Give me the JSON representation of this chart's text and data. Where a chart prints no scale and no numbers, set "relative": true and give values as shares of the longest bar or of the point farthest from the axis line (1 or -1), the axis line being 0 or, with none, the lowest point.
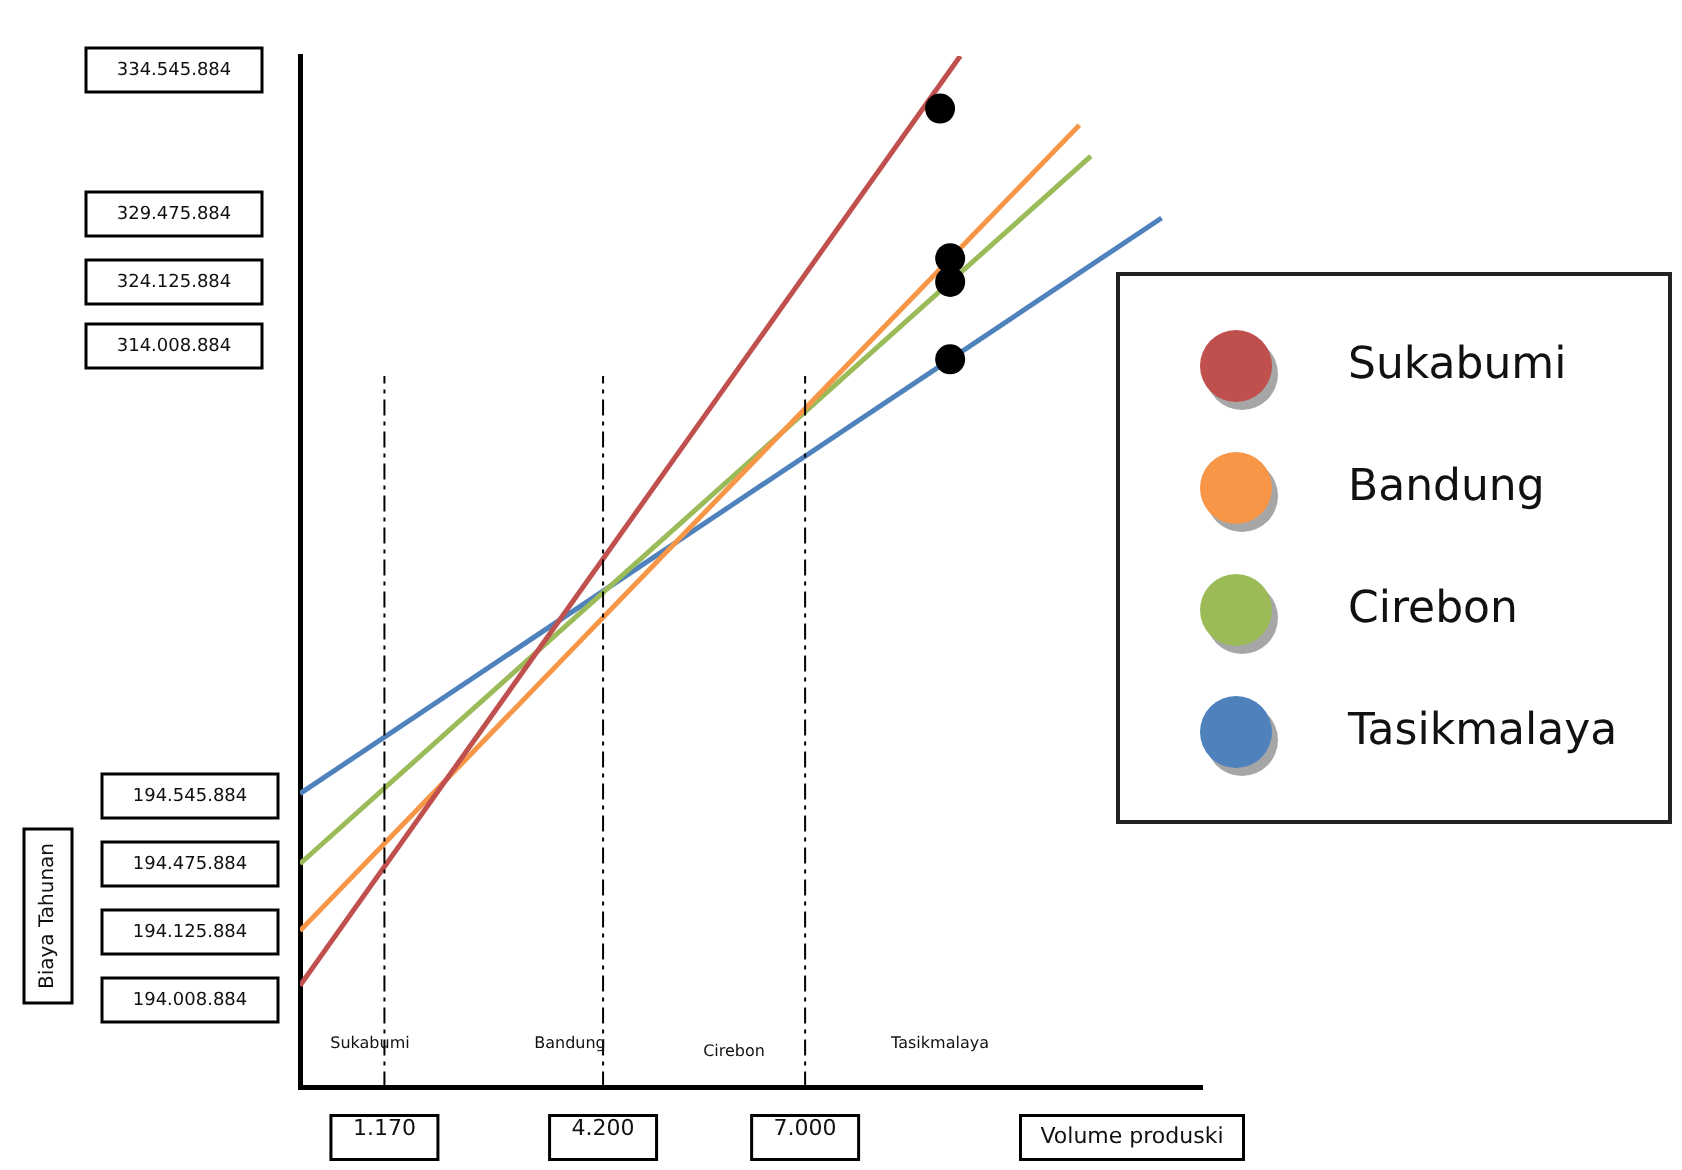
{
  "chart_data": {
    "type": "line",
    "relative": true,
    "xlabel": "Volume produski",
    "xlim": [
      0,
      12500
    ],
    "xticks": [
      {
        "value": 1170,
        "label": "1.170"
      },
      {
        "value": 4200,
        "label": "4.200"
      },
      {
        "value": 7000,
        "label": "7.000"
      }
    ],
    "grid": false,
    "legend": "right",
    "marker": "none",
    "series": [
      {
        "name": "Sukabumi",
        "color": "#c0504d",
        "x": [
          0,
          9150
        ],
        "values": [
          0.099,
          1.0
        ]
      },
      {
        "name": "Bandung",
        "color": "#f79646",
        "x": [
          0,
          10800
        ],
        "values": [
          0.152,
          0.933
        ]
      },
      {
        "name": "Cirebon",
        "color": "#9bbb59",
        "x": [
          0,
          10960
        ],
        "values": [
          0.217,
          0.903
        ]
      },
      {
        "name": "Tasikmalaya",
        "color": "#4f81bd",
        "x": [
          0,
          11940
        ],
        "values": [
          0.285,
          0.843
        ]
      },
      {
        "type": "scatter",
        "color": "#000000",
        "marker": "circle",
        "x": [
          8870,
          9010,
          9010,
          9010
        ],
        "values": [
          0.949,
          0.804,
          0.781,
          0.706
        ]
      }
    ],
    "ref_lines": [
      {
        "axis": "x",
        "value": 1170,
        "line_style": "dashed",
        "color": "#000000"
      },
      {
        "axis": "x",
        "value": 4200,
        "line_style": "dashed",
        "color": "#000000"
      },
      {
        "axis": "x",
        "value": 7000,
        "line_style": "dashed",
        "color": "#000000"
      }
    ],
    "annotations": [
      "334.545.884",
      "329.475.884",
      "324.125.884",
      "314.008.884",
      "194.545.884",
      "194.475.884",
      "194.125.884",
      "194.008.884",
      "Sukabumi",
      "Bandung",
      "Cirebon",
      "Tasikmalaya",
      "Biaya Tahunan"
    ]
  }
}
